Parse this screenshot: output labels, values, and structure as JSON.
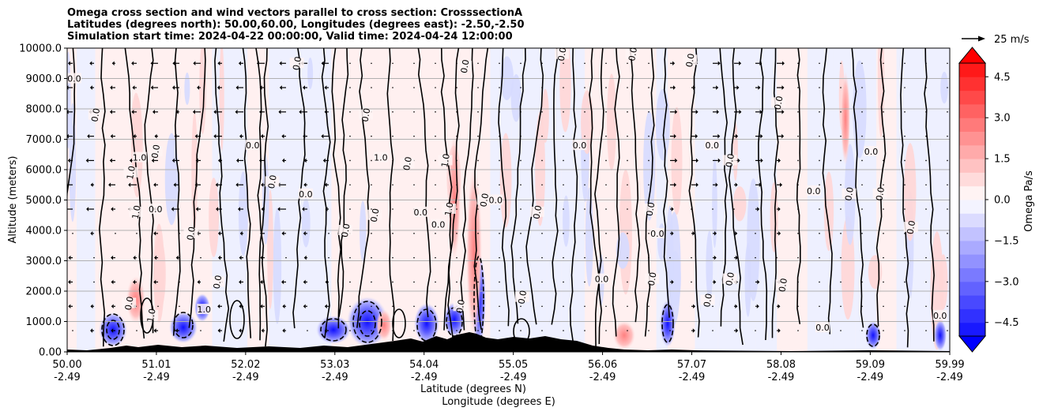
{
  "chart_data": {
    "type": "contour",
    "title_lines": [
      "Omega cross section and wind vectors parallel to cross section: CrosssectionA",
      "Latitudes (degrees north): 50.00,60.00, Longitudes (degrees east): -2.50,-2.50",
      "Simulation start time: 2024-04-22 00:00:00, Valid time: 2024-04-24 12:00:00"
    ],
    "xlabel_lat": "Latitude (degrees N)",
    "xlabel_lon": "Longitude (degrees E)",
    "ylabel": "Altitude (meters)",
    "xlim": [
      50.0,
      59.99
    ],
    "ylim": [
      0,
      10000
    ],
    "x_ticks": [
      {
        "lat": "50.00",
        "lon": "-2.49",
        "v": 50.0
      },
      {
        "lat": "51.01",
        "lon": "-2.49",
        "v": 51.01
      },
      {
        "lat": "52.02",
        "lon": "-2.49",
        "v": 52.02
      },
      {
        "lat": "53.03",
        "lon": "-2.49",
        "v": 53.03
      },
      {
        "lat": "54.04",
        "lon": "-2.49",
        "v": 54.04
      },
      {
        "lat": "55.05",
        "lon": "-2.49",
        "v": 55.05
      },
      {
        "lat": "56.06",
        "lon": "-2.49",
        "v": 56.06
      },
      {
        "lat": "57.07",
        "lon": "-2.49",
        "v": 57.07
      },
      {
        "lat": "58.08",
        "lon": "-2.49",
        "v": 58.08
      },
      {
        "lat": "59.09",
        "lon": "-2.49",
        "v": 59.09
      },
      {
        "lat": "59.99",
        "lon": "-2.49",
        "v": 59.99
      }
    ],
    "y_ticks": [
      {
        "label": "0.00",
        "v": 0
      },
      {
        "label": "1000.0",
        "v": 1000
      },
      {
        "label": "2000.0",
        "v": 2000
      },
      {
        "label": "3000.0",
        "v": 3000
      },
      {
        "label": "4000.0",
        "v": 4000
      },
      {
        "label": "5000.0",
        "v": 5000
      },
      {
        "label": "6000.0",
        "v": 6000
      },
      {
        "label": "7000.0",
        "v": 7000
      },
      {
        "label": "8000.0",
        "v": 8000
      },
      {
        "label": "9000.0",
        "v": 9000
      },
      {
        "label": "10000.0",
        "v": 10000
      }
    ],
    "colorbar": {
      "label": "Omega Pa/s",
      "min": -5.0,
      "max": 5.0,
      "ticks": [
        {
          "label": "4.5",
          "v": 4.5
        },
        {
          "label": "3.0",
          "v": 3.0
        },
        {
          "label": "1.5",
          "v": 1.5
        },
        {
          "label": "0.0",
          "v": 0.0
        },
        {
          "label": "−1.5",
          "v": -1.5
        },
        {
          "label": "−3.0",
          "v": -3.0
        },
        {
          "label": "−4.5",
          "v": -4.5
        }
      ]
    },
    "quiver_key": {
      "label": "25 m/s"
    },
    "contour_labels": [
      {
        "text": "0.0",
        "lat": 50.08,
        "alt": 9000
      },
      {
        "text": "0.0",
        "lat": 50.32,
        "alt": 7800
      },
      {
        "text": "1.0",
        "lat": 50.72,
        "alt": 5900
      },
      {
        "text": "1.0",
        "lat": 50.82,
        "alt": 6400
      },
      {
        "text": "0.0",
        "lat": 51.0,
        "alt": 6600
      },
      {
        "text": "1.0",
        "lat": 50.78,
        "alt": 4600
      },
      {
        "text": "0.0",
        "lat": 51.0,
        "alt": 4700
      },
      {
        "text": "0.0",
        "lat": 51.4,
        "alt": 3900
      },
      {
        "text": "0.0",
        "lat": 51.7,
        "alt": 2300
      },
      {
        "text": "0.0",
        "lat": 52.1,
        "alt": 6800
      },
      {
        "text": "0.0",
        "lat": 52.32,
        "alt": 5600
      },
      {
        "text": "0.0",
        "lat": 52.6,
        "alt": 9500
      },
      {
        "text": "0.0",
        "lat": 52.7,
        "alt": 5200
      },
      {
        "text": "0.0",
        "lat": 53.15,
        "alt": 4000
      },
      {
        "text": "0.0",
        "lat": 53.38,
        "alt": 7800
      },
      {
        "text": "1.0",
        "lat": 53.55,
        "alt": 6400
      },
      {
        "text": "0.0",
        "lat": 53.48,
        "alt": 4500
      },
      {
        "text": "0.0",
        "lat": 53.85,
        "alt": 6200
      },
      {
        "text": "0.0",
        "lat": 54.0,
        "alt": 4600
      },
      {
        "text": "1.0",
        "lat": 54.28,
        "alt": 6300
      },
      {
        "text": "1.0",
        "lat": 54.32,
        "alt": 4700
      },
      {
        "text": "0.0",
        "lat": 54.2,
        "alt": 4200
      },
      {
        "text": "0.0",
        "lat": 54.5,
        "alt": 9400
      },
      {
        "text": "0.0",
        "lat": 54.72,
        "alt": 5000
      },
      {
        "text": "0.0",
        "lat": 54.85,
        "alt": 5000
      },
      {
        "text": "0.0",
        "lat": 55.32,
        "alt": 4600
      },
      {
        "text": "0.0",
        "lat": 55.6,
        "alt": 9800
      },
      {
        "text": "0.0",
        "lat": 55.8,
        "alt": 6800
      },
      {
        "text": "0.0",
        "lat": 56.4,
        "alt": 9800
      },
      {
        "text": "0.0",
        "lat": 56.6,
        "alt": 4700
      },
      {
        "text": "0.0",
        "lat": 56.68,
        "alt": 3900
      },
      {
        "text": "0.0",
        "lat": 56.62,
        "alt": 2400
      },
      {
        "text": "0.0",
        "lat": 57.05,
        "alt": 9600
      },
      {
        "text": "0.0",
        "lat": 57.3,
        "alt": 6800
      },
      {
        "text": "0.0",
        "lat": 57.5,
        "alt": 6300
      },
      {
        "text": "0.0",
        "lat": 58.05,
        "alt": 8200
      },
      {
        "text": "0.0",
        "lat": 58.45,
        "alt": 5300
      },
      {
        "text": "0.0",
        "lat": 58.85,
        "alt": 5200
      },
      {
        "text": "0.0",
        "lat": 58.1,
        "alt": 2200
      },
      {
        "text": "0.0",
        "lat": 59.1,
        "alt": 6600
      },
      {
        "text": "0.0",
        "lat": 59.55,
        "alt": 4100
      },
      {
        "text": "0.0",
        "lat": 59.2,
        "alt": 5200
      },
      {
        "text": "0.0",
        "lat": 59.88,
        "alt": 1200
      },
      {
        "text": "0.0",
        "lat": 50.7,
        "alt": 1600
      },
      {
        "text": "1.0",
        "lat": 50.95,
        "alt": 1200
      },
      {
        "text": "1.0",
        "lat": 51.55,
        "alt": 1400
      },
      {
        "text": "0.0",
        "lat": 54.45,
        "alt": 1500
      },
      {
        "text": "0.0",
        "lat": 55.15,
        "alt": 1800
      },
      {
        "text": "0.0",
        "lat": 56.05,
        "alt": 2400
      },
      {
        "text": "0.0",
        "lat": 57.25,
        "alt": 1700
      },
      {
        "text": "0.0",
        "lat": 57.5,
        "alt": 2400
      },
      {
        "text": "0.0",
        "lat": 58.55,
        "alt": 800
      }
    ]
  }
}
